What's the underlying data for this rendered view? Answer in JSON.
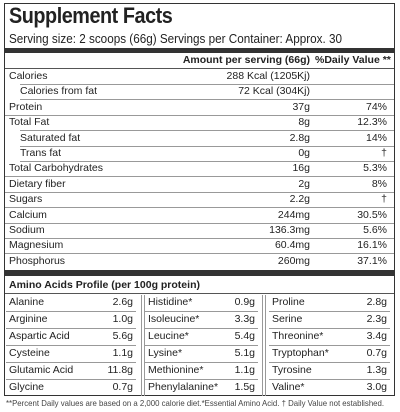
{
  "title": "Supplement Facts",
  "serving": "Serving size: 2 scoops (66g) Servings per Container: Approx. 30",
  "header": {
    "amount": "Amount per serving (66g)",
    "dv": "%Daily Value **"
  },
  "nutrients": [
    {
      "name": "Calories",
      "amount": "288 Kcal (1205Kj)",
      "dv": null
    },
    {
      "name": "Calories from fat",
      "amount": "72 Kcal (304Kj)",
      "dv": null,
      "sub": true
    },
    {
      "name": "Protein",
      "amount": "37g",
      "dv": "74%"
    },
    {
      "name": "Total Fat",
      "amount": "8g",
      "dv": "12.3%"
    },
    {
      "name": "Saturated fat",
      "amount": "2.8g",
      "dv": "14%",
      "sub": true
    },
    {
      "name": "Trans fat",
      "amount": "0g",
      "dv": "†",
      "sub": true
    },
    {
      "name": "Total Carbohydrates",
      "amount": "16g",
      "dv": "5.3%"
    },
    {
      "name": "Dietary fiber",
      "amount": "2g",
      "dv": "8%"
    },
    {
      "name": "Sugars",
      "amount": "2.2g",
      "dv": "†"
    },
    {
      "name": "Calcium",
      "amount": "244mg",
      "dv": "30.5%"
    },
    {
      "name": "Sodium",
      "amount": "136.3mg",
      "dv": "5.6%"
    },
    {
      "name": "Magnesium",
      "amount": "60.4mg",
      "dv": "16.1%"
    },
    {
      "name": "Phosphorus",
      "amount": "260mg",
      "dv": "37.1%"
    }
  ],
  "amino": {
    "title": "Amino Acids Profile (per 100g protein)",
    "columns": [
      [
        [
          "Alanine",
          "2.6g"
        ],
        [
          "Arginine",
          "1.0g"
        ],
        [
          "Aspartic Acid",
          "5.6g"
        ],
        [
          "Cysteine",
          "1.1g"
        ],
        [
          "Glutamic Acid",
          "11.8g"
        ],
        [
          "Glycine",
          "0.7g"
        ]
      ],
      [
        [
          "Histidine*",
          "0.9g"
        ],
        [
          "Isoleucine*",
          "3.3g"
        ],
        [
          "Leucine*",
          "5.4g"
        ],
        [
          "Lysine*",
          "5.1g"
        ],
        [
          "Methionine*",
          "1.1g"
        ],
        [
          "Phenylalanine*",
          "1.5g"
        ]
      ],
      [
        [
          "Proline",
          "2.8g"
        ],
        [
          "Serine",
          "2.3g"
        ],
        [
          "Threonine*",
          "3.4g"
        ],
        [
          "Tryptophan*",
          "0.7g"
        ],
        [
          "Tyrosine",
          "1.3g"
        ],
        [
          "Valine*",
          "3.0g"
        ]
      ]
    ]
  },
  "footer": "**Percent Daily values are based on a 2,000 calorie diet.*Essential Amino Acid. † Daily Value not established."
}
